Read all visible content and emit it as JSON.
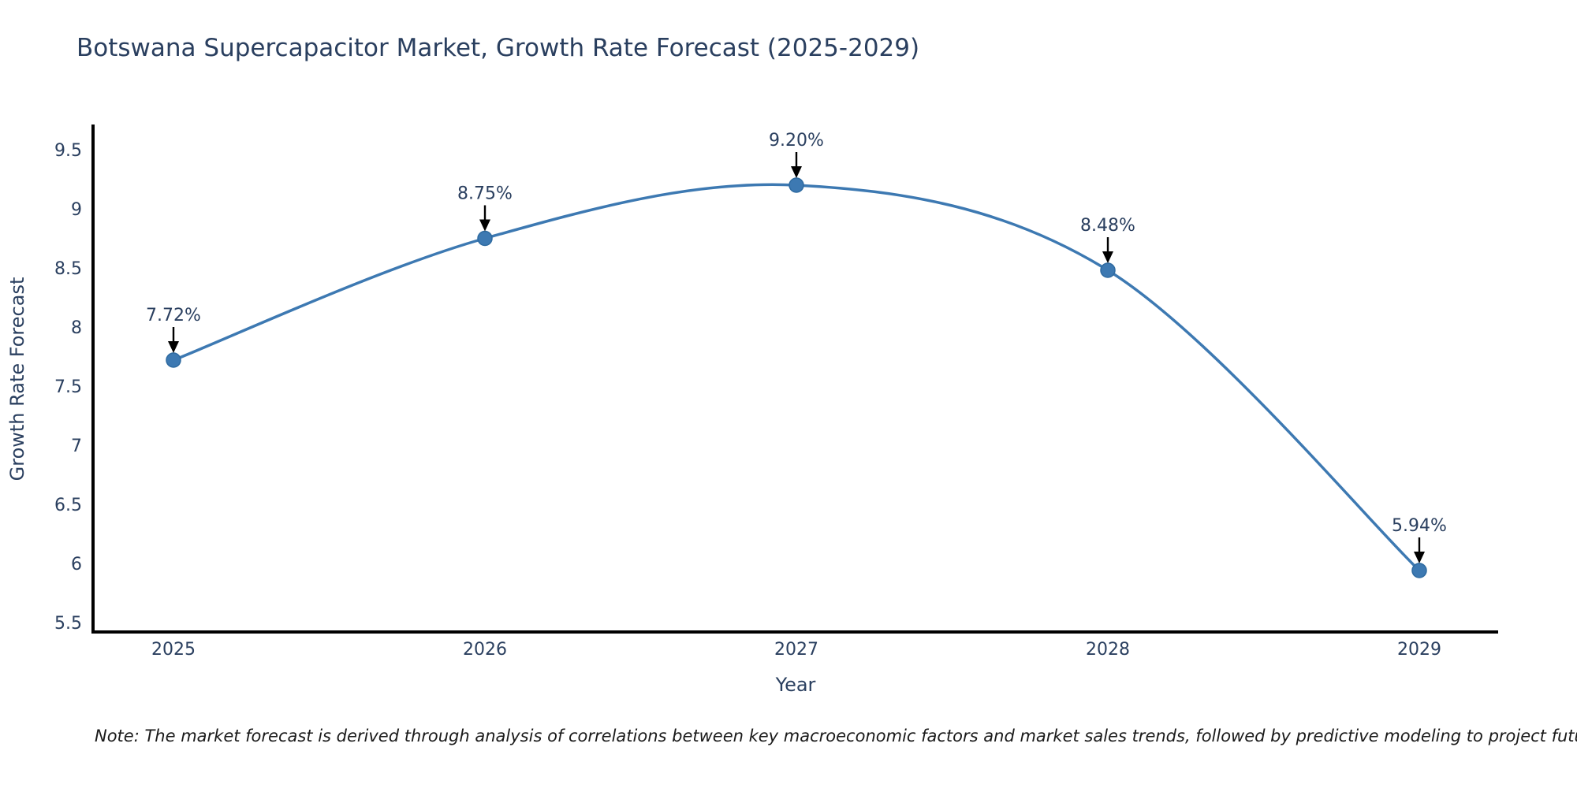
{
  "note": "Note: The market forecast is derived through analysis of correlations between key macroeconomic factors and market sales trends, followed by predictive modeling to project future sales",
  "colors": {
    "line": "#3d79b2",
    "marker_fill": "#3d79b2",
    "marker_stroke": "#2e6aa0",
    "axis": "#000000",
    "arrow": "#000000",
    "text": "#2a3f5f"
  },
  "chart_data": {
    "type": "line",
    "title": "Botswana Supercapacitor Market, Growth Rate Forecast (2025-2029)",
    "xlabel": "Year",
    "ylabel": "Growth Rate Forecast",
    "x": [
      2025,
      2026,
      2027,
      2028,
      2029
    ],
    "values": [
      7.72,
      8.75,
      9.2,
      8.48,
      5.94
    ],
    "point_labels": [
      "7.72%",
      "8.75%",
      "9.20%",
      "8.48%",
      "5.94%"
    ],
    "xtick_labels": [
      "2025",
      "2026",
      "2027",
      "2028",
      "2029"
    ],
    "yticks": [
      5.5,
      6,
      6.5,
      7,
      7.5,
      8,
      8.5,
      9,
      9.5
    ],
    "ytick_labels": [
      "5.5",
      "6",
      "6.5",
      "7",
      "7.5",
      "8",
      "8.5",
      "9",
      "9.5"
    ],
    "ylim": [
      5.5,
      9.5
    ],
    "xlim": [
      2024.74,
      2029.25
    ],
    "line_shape": "spline",
    "grid": false,
    "legend_position": "none",
    "marker": "circle",
    "annotations_arrows": true
  }
}
